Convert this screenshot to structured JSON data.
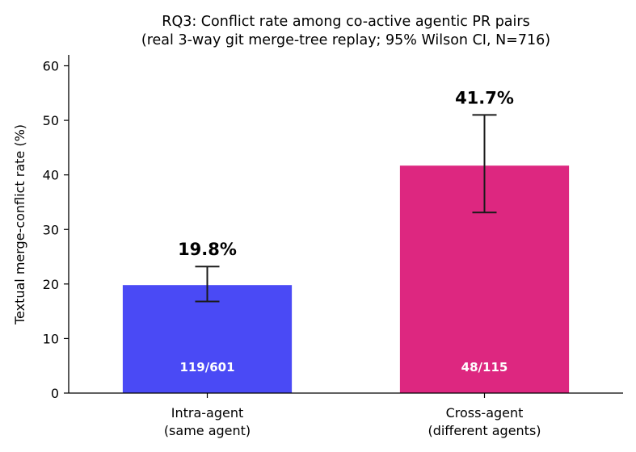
{
  "chart_data": {
    "type": "bar",
    "title_line1": "RQ3: Conflict rate among co-active agentic PR pairs",
    "title_line2": "(real 3-way git merge-tree replay; 95% Wilson CI, N=716)",
    "ylabel": "Textual merge-conflict rate (%)",
    "xlabel": "",
    "ylim": [
      0,
      62
    ],
    "yticks": [
      0,
      10,
      20,
      30,
      40,
      50,
      60
    ],
    "grid": false,
    "categories": [
      {
        "line1": "Intra-agent",
        "line2": "(same agent)"
      },
      {
        "line1": "Cross-agent",
        "line2": "(different agents)"
      }
    ],
    "values": [
      19.8,
      41.7
    ],
    "value_labels": [
      "19.8%",
      "41.7%"
    ],
    "ci_low": [
      16.8,
      33.1
    ],
    "ci_high": [
      23.2,
      51.0
    ],
    "count_labels": [
      "119/601",
      "48/115"
    ],
    "colors": [
      "#4a4af5",
      "#dd2780"
    ]
  }
}
